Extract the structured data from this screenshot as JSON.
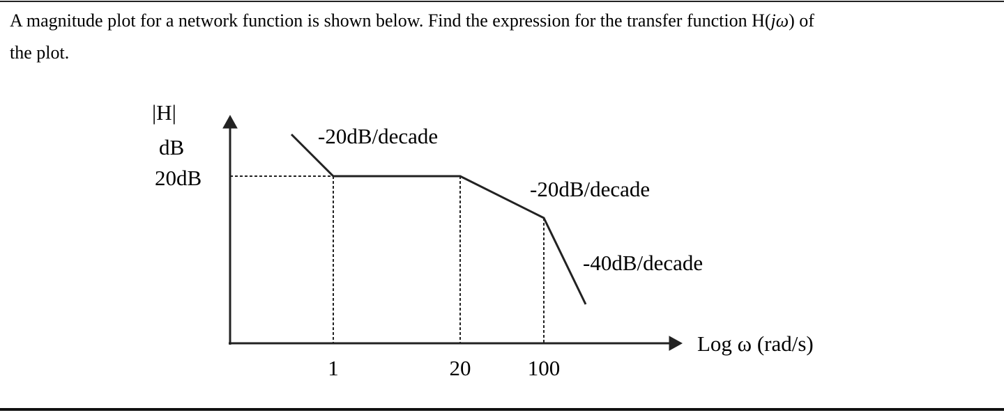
{
  "question": {
    "line1_start": "A magnitude plot for a network function is shown below. Find the expression for the transfer function H(",
    "line1_italic": "jω",
    "line1_end": ") of",
    "line2": "the plot."
  },
  "diagram": {
    "y_label_top": "|H|",
    "y_label_unit": "dB",
    "y_level": "20dB",
    "x_label": "Log ω (rad/s)",
    "x_ticks": [
      "1",
      "20",
      "100"
    ],
    "slopes": [
      "-20dB/decade",
      "-20dB/decade",
      "-40dB/decade"
    ]
  }
}
